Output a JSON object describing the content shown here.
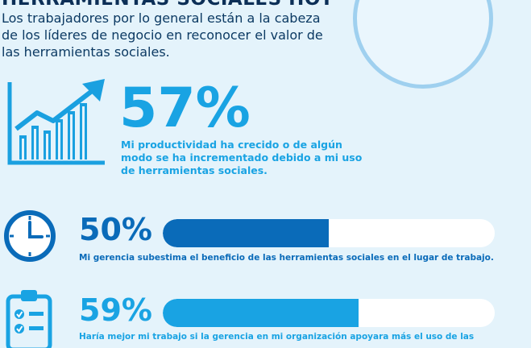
{
  "header": {
    "title": "HERRAMIENTAS SOCIALES HOY",
    "intro": "Los trabajadores por lo general están a la cabeza de los líderes de negocio en reconocer el valor de las herramientas sociales."
  },
  "stats": [
    {
      "id": "productivity",
      "percent_label": "57%",
      "value": 57,
      "description": "Mi productividad ha crecido o de algún modo se ha incrementado debido a mi uso de herramientas sociales.",
      "icon": "growth-chart-icon",
      "color": "#19a3e3"
    },
    {
      "id": "management-underestimates",
      "percent_label": "50%",
      "value": 50,
      "description": "Mi gerencia subestima el beneficio de las herramientas sociales en el lugar de trabajo.",
      "icon": "clock-icon",
      "color": "#0a6bb9"
    },
    {
      "id": "management-support",
      "percent_label": "59%",
      "value": 59,
      "description": "Haría mejor mi trabajo si la gerencia en mi organización apoyara más el uso de las",
      "icon": "clipboard-checklist-icon",
      "color": "#19a3e3"
    }
  ]
}
